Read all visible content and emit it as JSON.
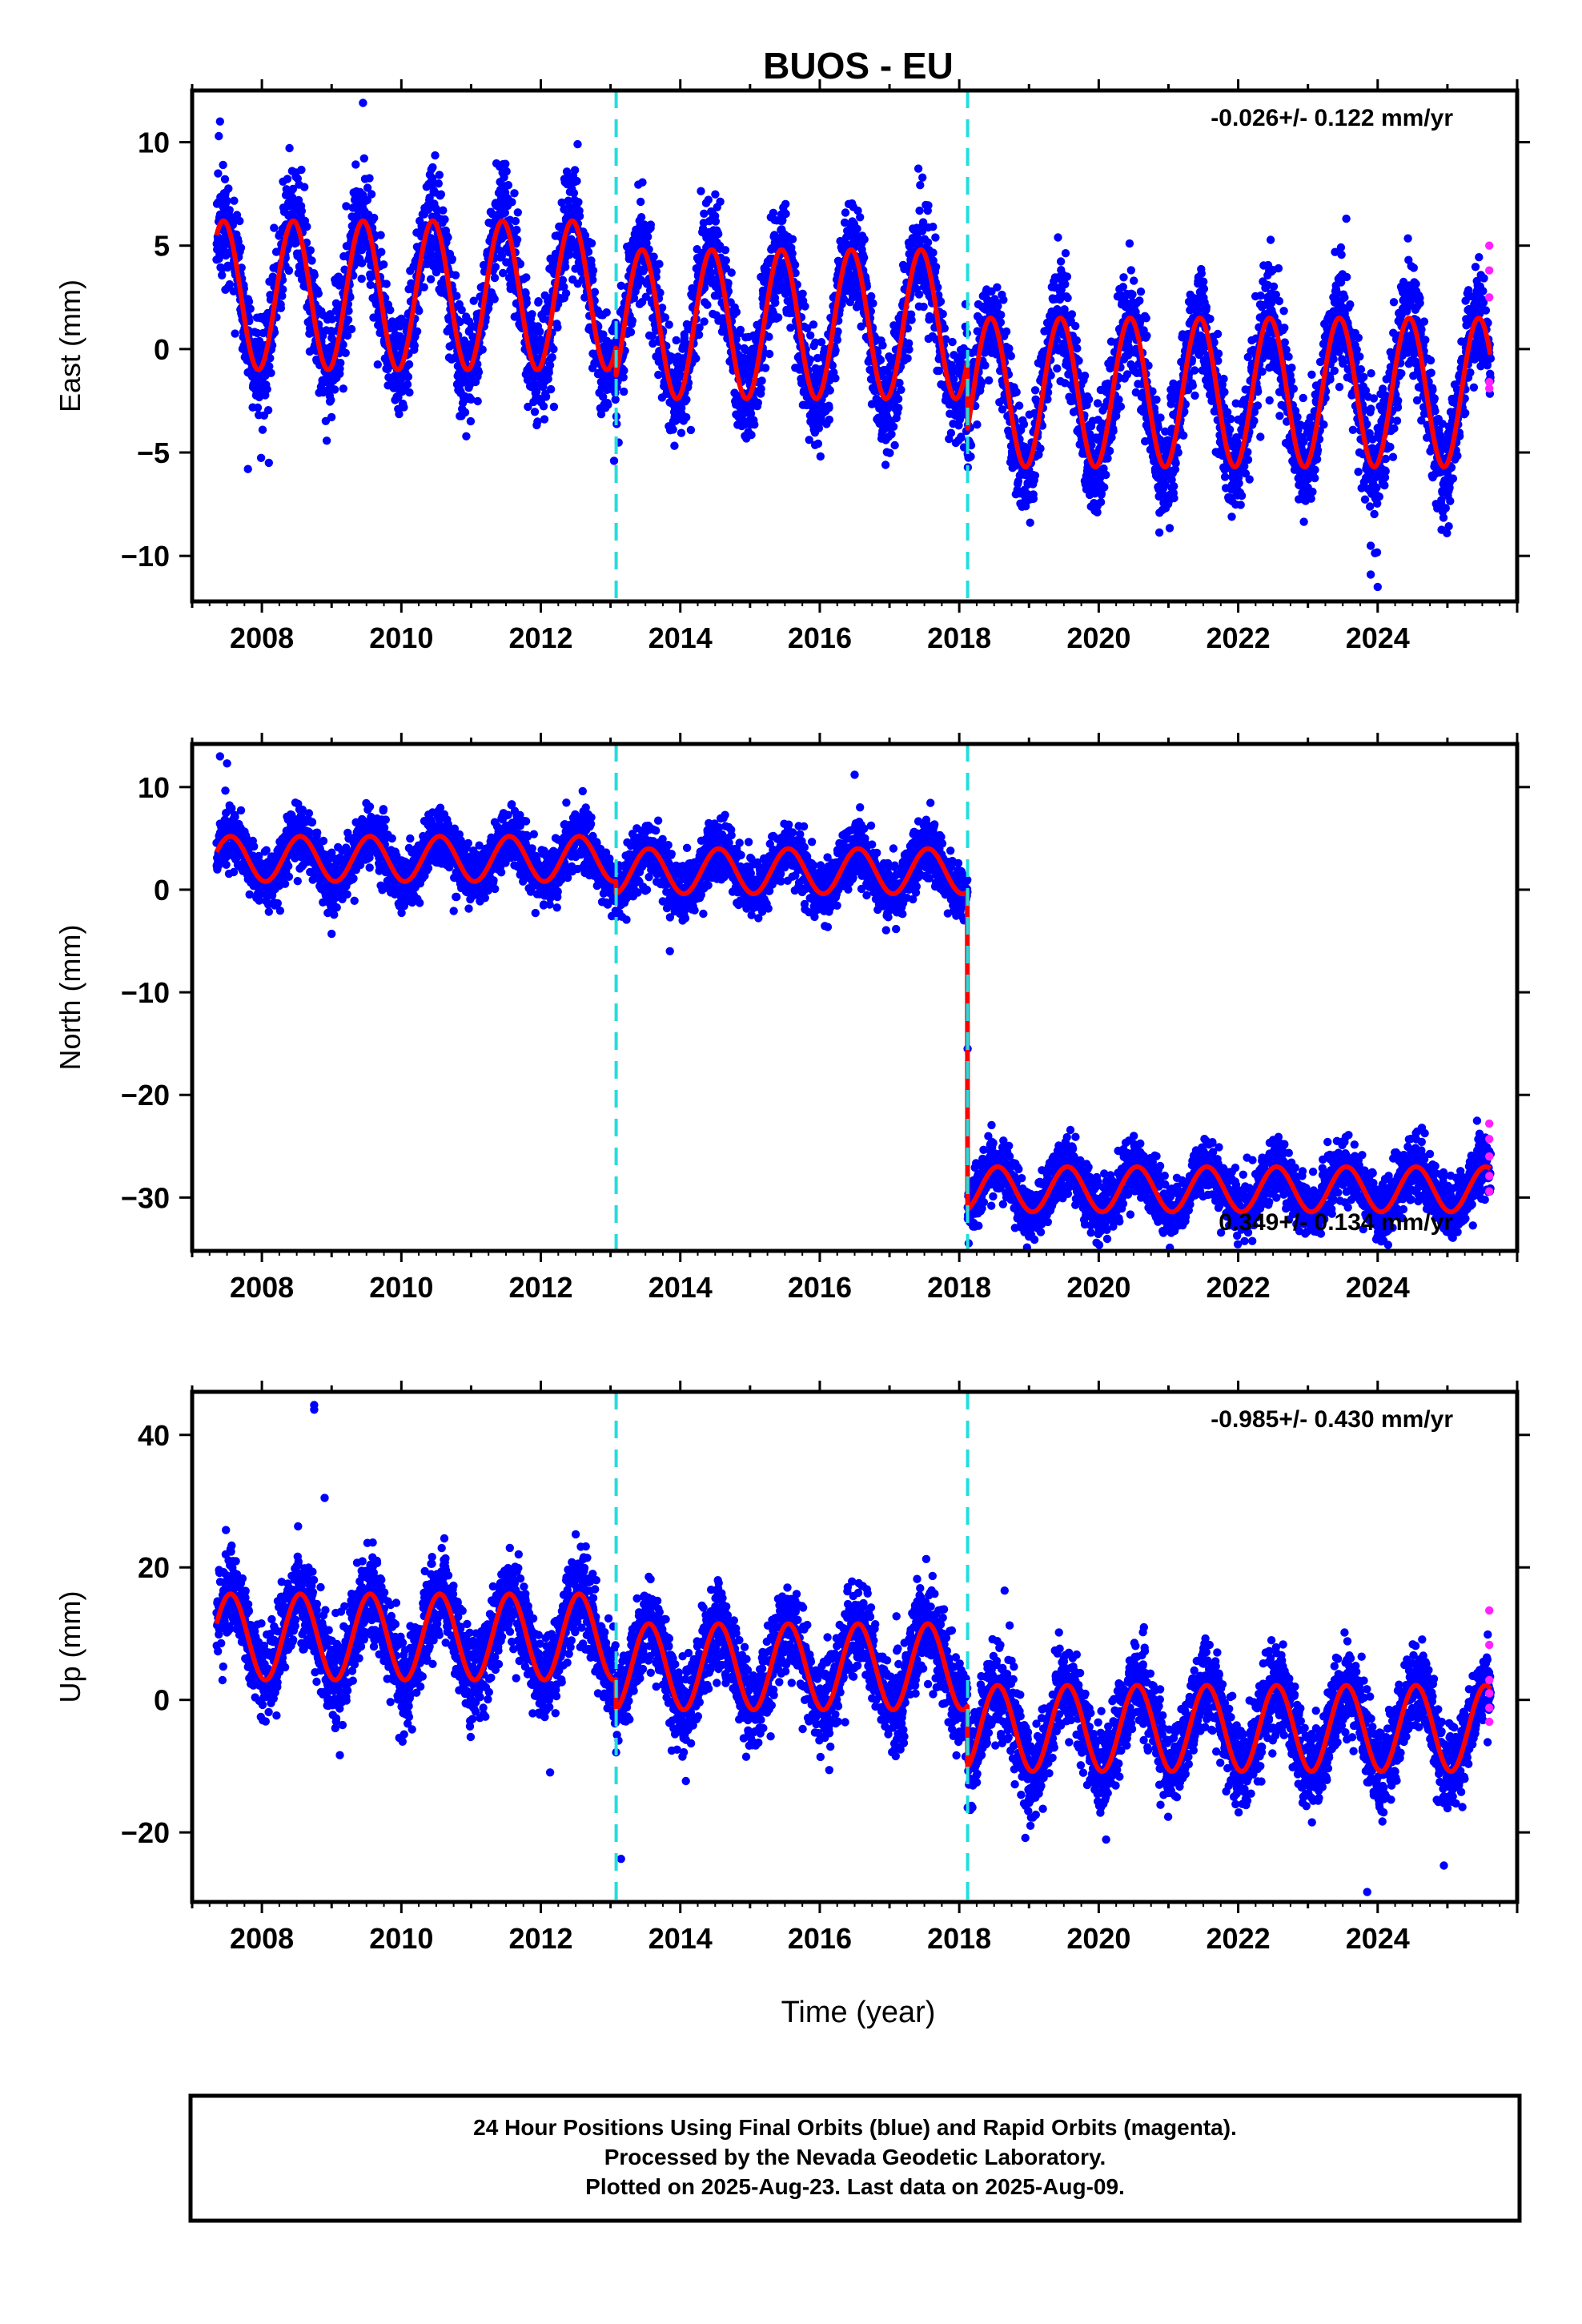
{
  "title": "BUOS - EU",
  "colors": {
    "final_orbits": "#0000ff",
    "rapid_orbits": "#ff22ff",
    "model": "#ff0000",
    "antenna_change": "#22dddd",
    "frame": "#000000"
  },
  "xaxis": {
    "label": "Time (year)",
    "range": [
      2007.0,
      2026.0
    ],
    "tick_labels": [
      "2008",
      "2010",
      "2012",
      "2014",
      "2016",
      "2018",
      "2020",
      "2022",
      "2024"
    ]
  },
  "event_lines": [
    2013.08,
    2018.12
  ],
  "caption": {
    "line1": "24 Hour Positions Using Final Orbits (blue) and Rapid Orbits (magenta).",
    "line2": "Processed by the Nevada Geodetic Laboratory.",
    "line3": "Plotted on 2025-Aug-23. Last data on 2025-Aug-09."
  },
  "chart_data": [
    {
      "type": "scatter",
      "component": "east",
      "ylabel": "East (mm)",
      "ylim": [
        -12.2,
        12.5
      ],
      "y_ticks": [
        -10,
        -5,
        0,
        5,
        10
      ],
      "y_tick_labels": [
        "−10",
        "−5",
        "0",
        "5",
        "10"
      ],
      "velocity_label": "-0.026+/- 0.122 mm/yr",
      "model": {
        "segments": [
          {
            "start": 2007.35,
            "end": 2013.08,
            "offset": 2.6,
            "amplitude": 3.6,
            "peak": 2007.45
          },
          {
            "start": 2013.08,
            "end": 2018.12,
            "offset": 1.2,
            "amplitude": 3.6,
            "peak": 2007.45
          },
          {
            "start": 2018.12,
            "end": 2025.62,
            "offset": -2.1,
            "amplitude": 3.6,
            "peak": 2007.45
          }
        ],
        "scatter_sd": 1.3
      },
      "outliers": [
        [
          2007.4,
          11.0
        ],
        [
          2009.45,
          11.9
        ],
        [
          2007.8,
          -5.8
        ],
        [
          2008.1,
          -5.5
        ],
        [
          2023.55,
          6.3
        ],
        [
          2024.0,
          -11.5
        ],
        [
          2023.9,
          -10.9
        ],
        [
          2013.05,
          -5.4
        ]
      ],
      "rapid_points": [
        [
          2025.6,
          5.0
        ],
        [
          2025.6,
          3.8
        ],
        [
          2025.6,
          2.5
        ],
        [
          2025.6,
          -1.6
        ],
        [
          2025.6,
          -1.9
        ]
      ]
    },
    {
      "type": "scatter",
      "component": "north",
      "ylabel": "North (mm)",
      "ylim": [
        -35.2,
        14.2
      ],
      "y_ticks": [
        -30,
        -20,
        -10,
        0,
        10
      ],
      "y_tick_labels": [
        "−30",
        "−20",
        "−10",
        "0",
        "10"
      ],
      "velocity_label": "0.349+/- 0.134 mm/yr",
      "model": {
        "segments": [
          {
            "start": 2007.35,
            "end": 2013.08,
            "offset": 3.0,
            "amplitude": 2.2,
            "peak": 2007.55
          },
          {
            "start": 2013.08,
            "end": 2018.12,
            "offset": 1.8,
            "amplitude": 2.2,
            "peak": 2007.55
          },
          {
            "start": 2018.12,
            "end": 2025.62,
            "offset": -29.2,
            "amplitude": 2.2,
            "peak": 2007.55
          }
        ],
        "scatter_sd": 1.4
      },
      "outliers": [
        [
          2007.4,
          13.0
        ],
        [
          2007.5,
          12.3
        ],
        [
          2016.5,
          11.2
        ],
        [
          2012.6,
          9.6
        ],
        [
          2009.0,
          -4.3
        ],
        [
          2013.85,
          -6.0
        ],
        [
          2018.12,
          -15.5
        ]
      ],
      "rapid_points": [
        [
          2025.6,
          -22.8
        ],
        [
          2025.6,
          -24.3
        ],
        [
          2025.6,
          -26.0
        ],
        [
          2025.6,
          -27.9
        ],
        [
          2025.6,
          -29.4
        ]
      ]
    },
    {
      "type": "scatter",
      "component": "up",
      "ylabel": "Up (mm)",
      "ylim": [
        -30.5,
        46.5
      ],
      "y_ticks": [
        -20,
        0,
        20,
        40
      ],
      "y_tick_labels": [
        "−20",
        "0",
        "20",
        "40"
      ],
      "velocity_label": "-0.985+/- 0.430 mm/yr",
      "model": {
        "segments": [
          {
            "start": 2007.35,
            "end": 2013.08,
            "offset": 9.5,
            "amplitude": 6.5,
            "peak": 2007.55
          },
          {
            "start": 2013.08,
            "end": 2018.12,
            "offset": 5.0,
            "amplitude": 6.5,
            "peak": 2007.55
          },
          {
            "start": 2018.12,
            "end": 2025.62,
            "offset": -4.3,
            "amplitude": 6.5,
            "peak": 2007.55
          }
        ],
        "scatter_sd": 3.3
      },
      "outliers": [
        [
          2008.75,
          44.5
        ],
        [
          2008.75,
          43.8
        ],
        [
          2008.9,
          30.5
        ],
        [
          2013.15,
          -24.0
        ],
        [
          2023.85,
          -29.0
        ],
        [
          2024.95,
          -25.0
        ],
        [
          2018.65,
          16.5
        ],
        [
          2012.5,
          25.0
        ]
      ],
      "rapid_points": [
        [
          2025.6,
          13.5
        ],
        [
          2025.6,
          8.3
        ],
        [
          2025.6,
          3.0
        ],
        [
          2025.6,
          1.0
        ],
        [
          2025.6,
          -1.2
        ],
        [
          2025.6,
          -3.3
        ]
      ]
    }
  ]
}
